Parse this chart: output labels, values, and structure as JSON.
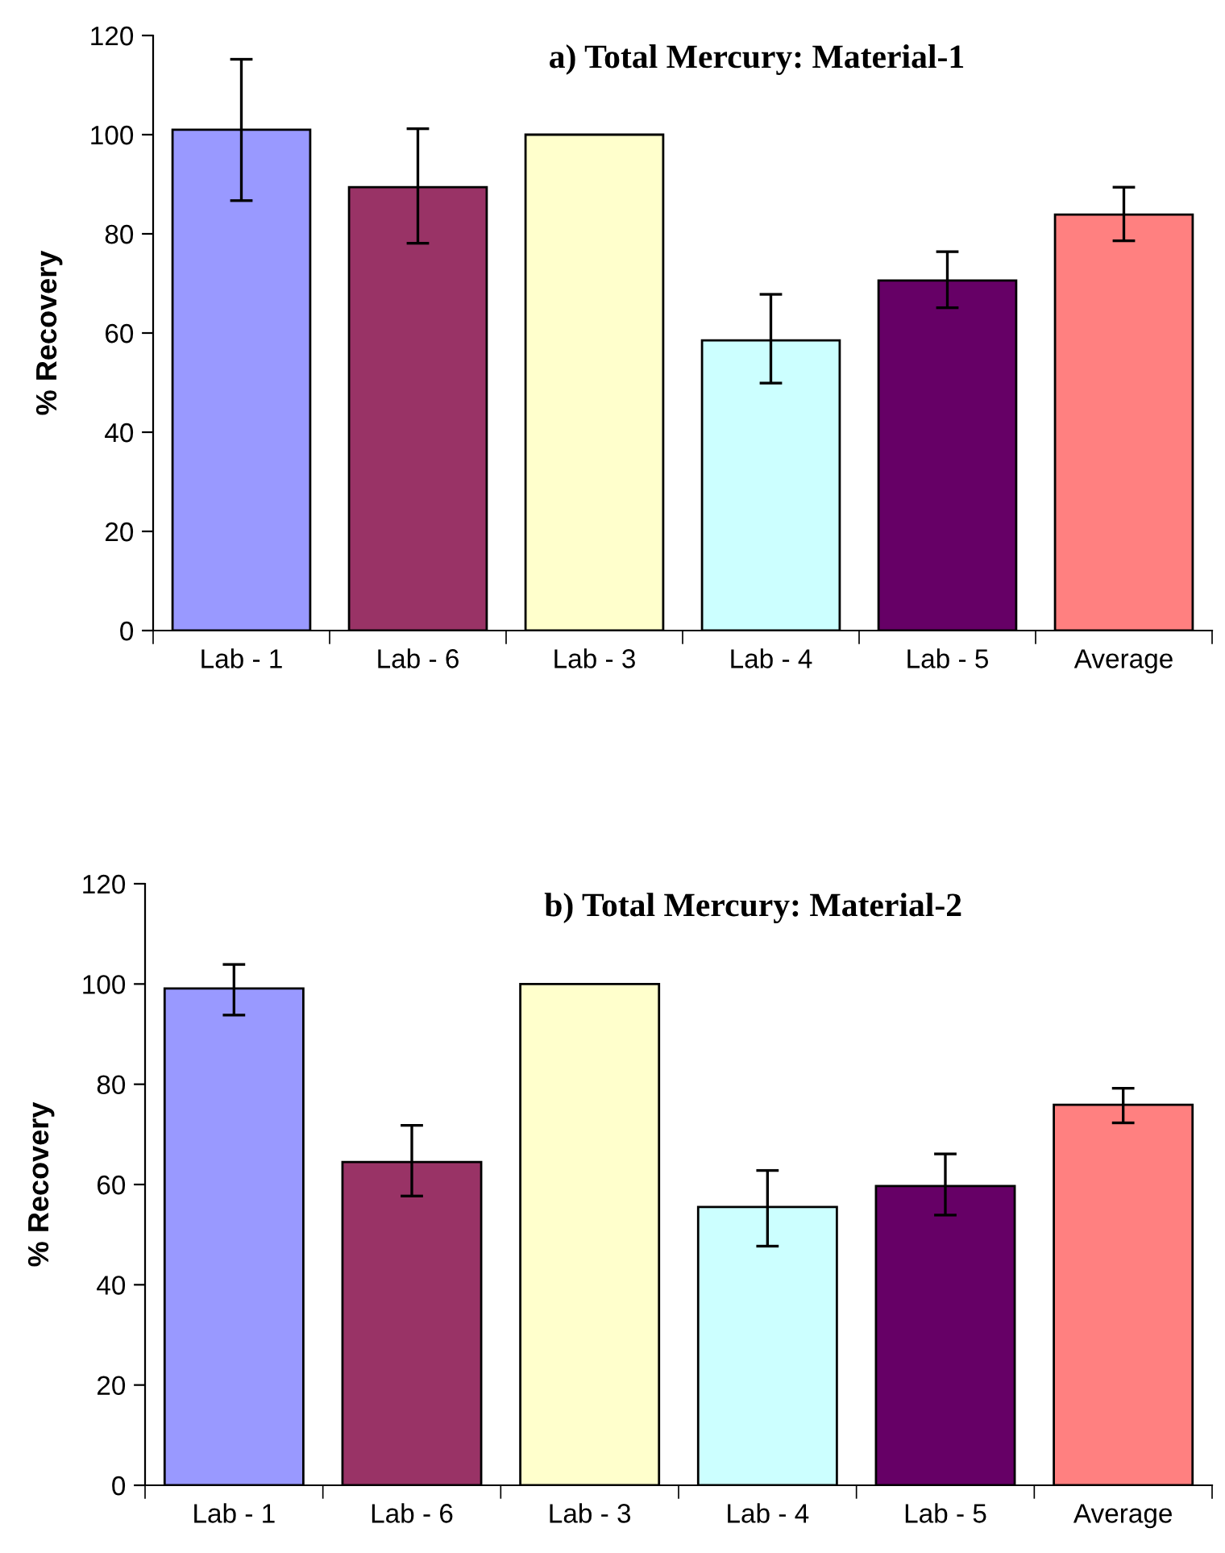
{
  "chart_data": [
    {
      "type": "bar",
      "title": "a) Total Mercury: Material-1",
      "ylabel": "% Recovery",
      "categories": [
        "Lab - 1",
        "Lab - 6",
        "Lab - 3",
        "Lab - 4",
        "Lab - 5",
        "Average"
      ],
      "values": [
        101,
        89.4,
        100,
        58.5,
        70.6,
        83.9
      ],
      "colors": [
        "#9999ff",
        "#993366",
        "#ffffcc",
        "#ccffff",
        "#660066",
        "#ff8080"
      ],
      "errors": [
        [
          86.7,
          115.2
        ],
        [
          78.1,
          101.2
        ],
        null,
        [
          49.9,
          67.8
        ],
        [
          65.1,
          76.4
        ],
        [
          78.6,
          89.4
        ]
      ],
      "ylim": [
        0,
        120
      ],
      "yticks": [
        0,
        20,
        40,
        60,
        80,
        100,
        120
      ],
      "grid": false,
      "legend": false
    },
    {
      "type": "bar",
      "title": "b) Total Mercury: Material-2",
      "ylabel": "% Recovery",
      "categories": [
        "Lab - 1",
        "Lab - 6",
        "Lab - 3",
        "Lab - 4",
        "Lab - 5",
        "Average"
      ],
      "values": [
        99.1,
        64.5,
        100,
        55.5,
        59.7,
        75.9
      ],
      "colors": [
        "#9999ff",
        "#993366",
        "#ffffcc",
        "#ccffff",
        "#660066",
        "#ff8080"
      ],
      "errors": [
        [
          93.8,
          103.9
        ],
        [
          57.7,
          71.8
        ],
        null,
        [
          47.7,
          62.8
        ],
        [
          53.9,
          66.1
        ],
        [
          72.3,
          79.2
        ]
      ],
      "ylim": [
        0,
        120
      ],
      "yticks": [
        0,
        20,
        40,
        60,
        80,
        100,
        120
      ],
      "grid": false,
      "legend": false
    }
  ]
}
